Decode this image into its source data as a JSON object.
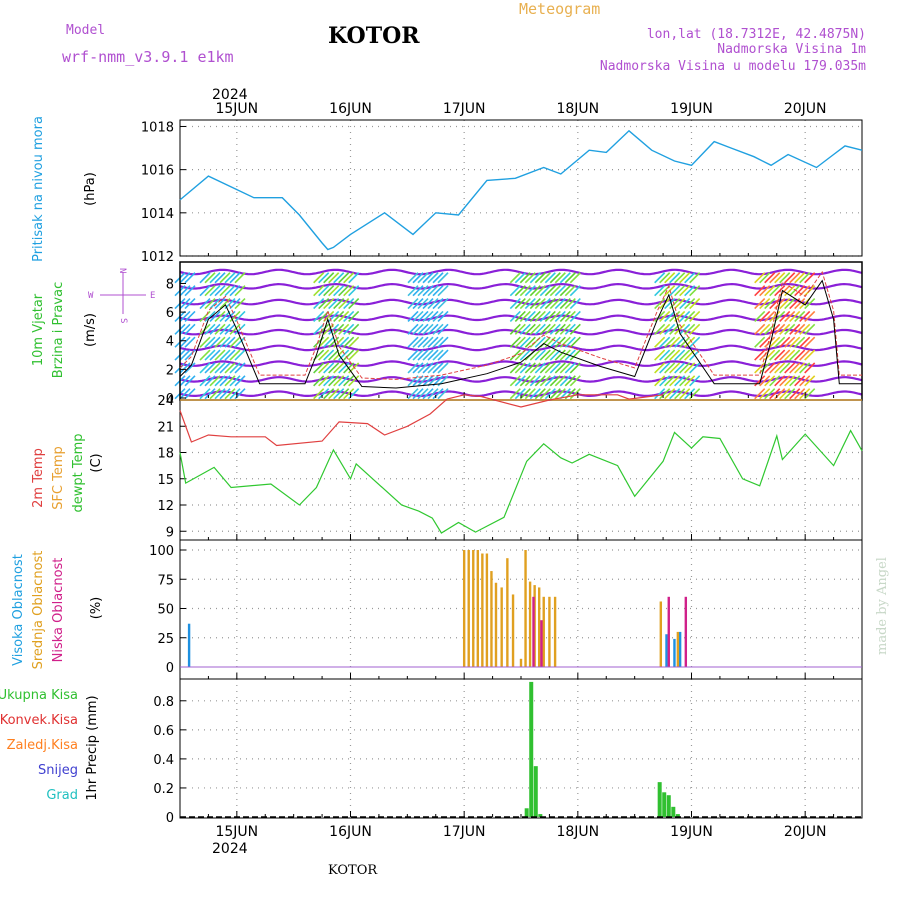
{
  "header": {
    "model_label": "Model",
    "model_name": "wrf-nmm_v3.9.1 e1km",
    "title": "KOTOR",
    "product": "Meteogram",
    "coords": "lon,lat (18.7312E, 42.4875N)",
    "elevation": "Nadmorska Visina 1m",
    "model_elevation": "Nadmorska Visina u modelu 179.035m",
    "footer_title": "KOTOR",
    "credit": "made by Angel"
  },
  "colors": {
    "high_cloud": "#1e90e0",
    "mid_cloud": "#e0a020",
    "low_cloud": "#d0208a",
    "pressure": "#20a0e0",
    "temp2m": "#e04040",
    "sfc_temp": "#e8a030",
    "dewpoint": "#30c830",
    "precip_total": "#30c030",
    "precip_conv": "#e03030",
    "precip_frozen": "#ff8020",
    "snow": "#4040d0",
    "graupel": "#20c0c0",
    "model_label": "#b050d0"
  },
  "time_axis": {
    "year": "2024",
    "days": [
      "15JUN",
      "16JUN",
      "17JUN",
      "18JUN",
      "19JUN",
      "20JUN"
    ]
  },
  "chart_data": [
    {
      "type": "line",
      "panel": "pressure",
      "ylabel": "Pritisak na nivou mora",
      "unit": "(hPa)",
      "yticks": [
        1012,
        1014,
        1016,
        1018
      ],
      "ylim": [
        1012,
        1018.3
      ],
      "grid": true,
      "series": [
        {
          "x": [
            14.5,
            14.75,
            14.95,
            15.15,
            15.4,
            15.55,
            15.75,
            15.8,
            15.85,
            16.0,
            16.3,
            16.55,
            16.75,
            16.95,
            17.2,
            17.45,
            17.7,
            17.85,
            18.1,
            18.25,
            18.45,
            18.65,
            18.85,
            19.0,
            19.2,
            19.35,
            19.55,
            19.7,
            19.85,
            20.1,
            20.25,
            20.35,
            20.5
          ],
          "values": [
            1014.6,
            1015.7,
            1015.2,
            1014.7,
            1014.7,
            1013.9,
            1012.6,
            1012.3,
            1012.4,
            1013.0,
            1014.0,
            1013.0,
            1014.0,
            1013.9,
            1015.5,
            1015.6,
            1016.1,
            1015.8,
            1016.9,
            1016.8,
            1017.8,
            1016.9,
            1016.4,
            1016.2,
            1017.3,
            1017.0,
            1016.6,
            1016.2,
            1016.7,
            1016.1,
            1016.7,
            1017.1,
            1016.9
          ]
        }
      ]
    },
    {
      "type": "line",
      "panel": "wind",
      "ylabel": "10m Vjetar",
      "ylabel2": "Brzina i Pravac",
      "unit": "(m/s)",
      "direction_key": {
        "n": "N",
        "s": "S",
        "e": "E",
        "w": "W"
      },
      "yticks": [
        0,
        2,
        4,
        6,
        8
      ],
      "ylim": [
        0,
        9.5
      ],
      "series": [
        {
          "x": [
            14.5,
            14.6,
            14.75,
            14.9,
            15.0,
            15.2,
            15.6,
            15.7,
            15.8,
            15.9,
            16.1,
            16.4,
            16.8,
            17.2,
            17.5,
            17.7,
            17.85,
            18.2,
            18.5,
            18.7,
            18.8,
            18.9,
            19.2,
            19.6,
            19.7,
            19.8,
            20.0,
            20.15,
            20.25,
            20.3,
            20.5
          ],
          "values": [
            1.5,
            2.3,
            5.5,
            6.5,
            4.8,
            1.0,
            1.0,
            3.0,
            5.5,
            3.0,
            0.8,
            0.7,
            1.0,
            1.7,
            2.5,
            3.8,
            3.2,
            2.2,
            1.5,
            5.5,
            7.2,
            4.5,
            1.0,
            1.0,
            4.0,
            7.5,
            6.5,
            8.2,
            5.5,
            1.0,
            1.0
          ]
        }
      ]
    },
    {
      "type": "line",
      "panel": "temperature",
      "ylabels": [
        "2m Temp",
        "SFC Temp",
        "dewpt Temp"
      ],
      "unit": "(C)",
      "yticks": [
        9,
        12,
        15,
        18,
        21,
        24
      ],
      "ylim": [
        8,
        24
      ],
      "series": [
        {
          "name": "2m Temp",
          "x": [
            14.5,
            14.6,
            14.75,
            14.95,
            15.25,
            15.35,
            15.75,
            15.9,
            16.15,
            16.3,
            16.5,
            16.7,
            16.85,
            17.0,
            17.15,
            17.5,
            17.75,
            18.0,
            18.35,
            18.45,
            18.75
          ],
          "values": [
            22.8,
            19.2,
            20.0,
            19.8,
            19.8,
            18.8,
            19.3,
            21.5,
            21.3,
            20.0,
            21.0,
            22.4,
            24.1,
            24.6,
            24.4,
            23.2,
            24.0,
            24.6,
            24.6,
            24.1,
            24.6
          ]
        },
        {
          "name": "SFC Temp",
          "x": [
            14.5,
            20.5
          ],
          "values": [
            24.0,
            24.0
          ]
        },
        {
          "name": "dewpt Temp",
          "x": [
            14.5,
            14.55,
            14.8,
            14.95,
            15.3,
            15.55,
            15.7,
            15.85,
            16.0,
            16.05,
            16.45,
            16.6,
            16.72,
            16.8,
            16.95,
            17.1,
            17.35,
            17.55,
            17.7,
            17.85,
            17.95,
            18.1,
            18.35,
            18.5,
            18.75,
            18.85,
            19.0,
            19.1,
            19.25,
            19.45,
            19.6,
            19.75,
            19.8,
            20.0,
            20.25,
            20.4,
            20.5
          ],
          "values": [
            18.0,
            14.5,
            16.3,
            14.0,
            14.4,
            12.0,
            14.0,
            18.3,
            15.0,
            16.7,
            12.0,
            11.3,
            10.5,
            8.8,
            10.0,
            8.9,
            10.6,
            17.0,
            19.0,
            17.4,
            16.8,
            17.8,
            16.5,
            13.0,
            17.0,
            20.3,
            18.5,
            19.8,
            19.6,
            15.0,
            14.2,
            19.9,
            17.2,
            20.1,
            16.5,
            20.5,
            18.2
          ]
        }
      ]
    },
    {
      "type": "bar",
      "panel": "cloud",
      "ylabels": [
        "Visoka Oblacnost",
        "Srednja Oblacnost",
        "Niska Oblacnost"
      ],
      "unit": "(%)",
      "yticks": [
        0,
        25,
        50,
        75,
        100
      ],
      "ylim": [
        0,
        100
      ],
      "series": [
        {
          "name": "Visoka Oblacnost",
          "x": [
            14.58,
            18.78,
            18.85,
            18.9
          ],
          "values": [
            37,
            28,
            24,
            30
          ]
        },
        {
          "name": "Srednja Oblacnost",
          "x": [
            17.0,
            17.04,
            17.08,
            17.12,
            17.16,
            17.2,
            17.24,
            17.28,
            17.33,
            17.38,
            17.43,
            17.5,
            17.54,
            17.58,
            17.62,
            17.66,
            17.7,
            17.75,
            17.8,
            18.73,
            18.88
          ],
          "values": [
            100,
            100,
            100,
            100,
            97,
            97,
            82,
            72,
            68,
            93,
            62,
            7,
            100,
            73,
            70,
            68,
            60,
            60,
            60,
            56,
            30
          ]
        },
        {
          "name": "Niska Oblacnost",
          "x": [
            17.61,
            17.68,
            18.8,
            18.95
          ],
          "values": [
            60,
            40,
            60,
            60
          ]
        }
      ]
    },
    {
      "type": "bar",
      "panel": "precip",
      "ylabel": "1hr Precip (mm)",
      "legend": [
        "Ukupna Kisa",
        "Konvek.Kisa",
        "Zaledj.Kisa",
        "Snijeg",
        "Grad"
      ],
      "yticks": [
        0,
        0.2,
        0.4,
        0.6,
        0.8
      ],
      "ylim": [
        0,
        0.95
      ],
      "series": [
        {
          "name": "Ukupna Kisa",
          "x": [
            17.55,
            17.59,
            17.63,
            17.67,
            18.72,
            18.76,
            18.8,
            18.84,
            18.88
          ],
          "values": [
            0.06,
            0.93,
            0.35,
            0.02,
            0.24,
            0.17,
            0.15,
            0.07,
            0.02
          ]
        }
      ]
    }
  ]
}
